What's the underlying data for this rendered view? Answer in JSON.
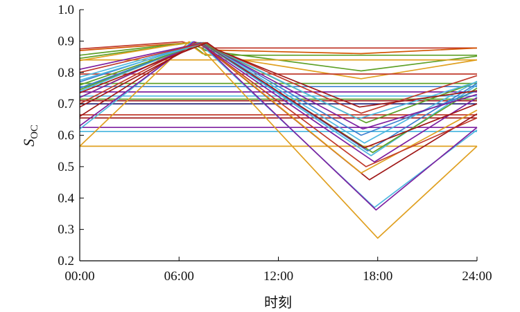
{
  "chart_data": {
    "type": "line",
    "xlabel": "时刻",
    "ylabel_main": "S",
    "ylabel_sub": "OC",
    "xlim": [
      0,
      24
    ],
    "ylim": [
      0.2,
      1.0
    ],
    "x_ticks": [
      {
        "value": 0,
        "label": "00:00"
      },
      {
        "value": 6,
        "label": "06:00"
      },
      {
        "value": 12,
        "label": "12:00"
      },
      {
        "value": 18,
        "label": "18:00"
      },
      {
        "value": 24,
        "label": "24:00"
      }
    ],
    "y_ticks": [
      {
        "value": 0.2,
        "label": "0.2"
      },
      {
        "value": 0.3,
        "label": "0.3"
      },
      {
        "value": 0.4,
        "label": "0.4"
      },
      {
        "value": 0.5,
        "label": "0.5"
      },
      {
        "value": 0.6,
        "label": "0.6"
      },
      {
        "value": 0.7,
        "label": "0.7"
      },
      {
        "value": 0.8,
        "label": "0.8"
      },
      {
        "value": 0.9,
        "label": "0.9"
      },
      {
        "value": 1.0,
        "label": "1.0"
      }
    ],
    "grid": false,
    "series": [
      {
        "color": "#c0392b",
        "x": [
          0,
          6.2,
          7.4,
          24
        ],
        "y": [
          0.875,
          0.898,
          0.878,
          0.878
        ]
      },
      {
        "color": "#d35400",
        "x": [
          0,
          6.8,
          7.5,
          17,
          24
        ],
        "y": [
          0.87,
          0.895,
          0.872,
          0.86,
          0.878
        ]
      },
      {
        "color": "#5da028",
        "x": [
          0,
          6.6,
          7.6,
          24
        ],
        "y": [
          0.855,
          0.895,
          0.855,
          0.855
        ]
      },
      {
        "color": "#5da028",
        "x": [
          0,
          6.7,
          7.6,
          17,
          24
        ],
        "y": [
          0.845,
          0.895,
          0.87,
          0.805,
          0.852
        ]
      },
      {
        "color": "#e0a020",
        "x": [
          0,
          6.5,
          7.4,
          17,
          24
        ],
        "y": [
          0.838,
          0.895,
          0.86,
          0.78,
          0.84
        ]
      },
      {
        "color": "#e0a020",
        "x": [
          0,
          6.2,
          7.3,
          24
        ],
        "y": [
          0.84,
          0.84,
          0.84,
          0.84
        ]
      },
      {
        "color": "#c0392b",
        "x": [
          0,
          24
        ],
        "y": [
          0.795,
          0.795
        ]
      },
      {
        "color": "#5da028",
        "x": [
          0,
          24
        ],
        "y": [
          0.765,
          0.765
        ]
      },
      {
        "color": "#3c7fd0",
        "x": [
          0,
          24
        ],
        "y": [
          0.755,
          0.755
        ]
      },
      {
        "color": "#7d1fa0",
        "x": [
          0,
          24
        ],
        "y": [
          0.738,
          0.738
        ]
      },
      {
        "color": "#4fb8e0",
        "x": [
          0,
          24
        ],
        "y": [
          0.725,
          0.725
        ]
      },
      {
        "color": "#5da028",
        "x": [
          0,
          24
        ],
        "y": [
          0.715,
          0.715
        ]
      },
      {
        "color": "#a01818",
        "x": [
          0,
          24
        ],
        "y": [
          0.71,
          0.71
        ]
      },
      {
        "color": "#2a2a7a",
        "x": [
          0,
          24
        ],
        "y": [
          0.7,
          0.7
        ]
      },
      {
        "color": "#c0392b",
        "x": [
          0,
          24
        ],
        "y": [
          0.665,
          0.665
        ]
      },
      {
        "color": "#a01818",
        "x": [
          0,
          24
        ],
        "y": [
          0.655,
          0.655
        ]
      },
      {
        "color": "#7d1fa0",
        "x": [
          0,
          24
        ],
        "y": [
          0.625,
          0.625
        ]
      },
      {
        "color": "#4fb8e0",
        "x": [
          0,
          24
        ],
        "y": [
          0.612,
          0.612
        ]
      },
      {
        "color": "#e0a020",
        "x": [
          0,
          24
        ],
        "y": [
          0.565,
          0.565
        ]
      },
      {
        "color": "#e0a020",
        "x": [
          0,
          6.6,
          7.2,
          18,
          24
        ],
        "y": [
          0.565,
          0.898,
          0.885,
          0.272,
          0.565
        ]
      },
      {
        "color": "#4fb8e0",
        "x": [
          0,
          6.8,
          7.3,
          17.8,
          24
        ],
        "y": [
          0.62,
          0.898,
          0.89,
          0.37,
          0.617
        ]
      },
      {
        "color": "#7d1fa0",
        "x": [
          0,
          6.9,
          7.4,
          17.9,
          24
        ],
        "y": [
          0.63,
          0.898,
          0.89,
          0.362,
          0.625
        ]
      },
      {
        "color": "#a01818",
        "x": [
          0,
          7.0,
          7.6,
          17.5,
          24
        ],
        "y": [
          0.66,
          0.895,
          0.88,
          0.458,
          0.668
        ]
      },
      {
        "color": "#e0a020",
        "x": [
          0,
          7.1,
          7.7,
          17.0,
          24
        ],
        "y": [
          0.72,
          0.895,
          0.878,
          0.48,
          0.68
        ]
      },
      {
        "color": "#c0392b",
        "x": [
          0,
          7.1,
          7.6,
          17.3,
          24
        ],
        "y": [
          0.7,
          0.895,
          0.88,
          0.5,
          0.655
        ]
      },
      {
        "color": "#7d1fa0",
        "x": [
          0,
          7.2,
          7.7,
          17.8,
          24
        ],
        "y": [
          0.72,
          0.895,
          0.878,
          0.515,
          0.72
        ]
      },
      {
        "color": "#4fb8e0",
        "x": [
          0,
          7.2,
          7.8,
          17.6,
          24
        ],
        "y": [
          0.74,
          0.895,
          0.88,
          0.535,
          0.76
        ]
      },
      {
        "color": "#5da028",
        "x": [
          0,
          7.2,
          7.8,
          17.7,
          24
        ],
        "y": [
          0.745,
          0.895,
          0.88,
          0.545,
          0.75
        ]
      },
      {
        "color": "#3c7fd0",
        "x": [
          0,
          7.3,
          7.9,
          17.4,
          24
        ],
        "y": [
          0.77,
          0.895,
          0.878,
          0.55,
          0.765
        ]
      },
      {
        "color": "#a01818",
        "x": [
          0,
          7.3,
          7.9,
          17.2,
          24
        ],
        "y": [
          0.69,
          0.895,
          0.88,
          0.56,
          0.7
        ]
      },
      {
        "color": "#4fb8e0",
        "x": [
          0,
          7.4,
          8.0,
          17.2,
          24
        ],
        "y": [
          0.785,
          0.895,
          0.878,
          0.575,
          0.772
        ]
      },
      {
        "color": "#3c7fd0",
        "x": [
          0,
          7.4,
          8.0,
          17.0,
          24
        ],
        "y": [
          0.75,
          0.895,
          0.88,
          0.6,
          0.742
        ]
      },
      {
        "color": "#7d1fa0",
        "x": [
          0,
          7.5,
          8.1,
          17.1,
          24
        ],
        "y": [
          0.81,
          0.895,
          0.875,
          0.62,
          0.73
        ]
      },
      {
        "color": "#5da028",
        "x": [
          0,
          7.5,
          8.1,
          17.3,
          24
        ],
        "y": [
          0.76,
          0.895,
          0.875,
          0.64,
          0.77
        ]
      },
      {
        "color": "#4fb8e0",
        "x": [
          0,
          7.6,
          8.2,
          16.8,
          24
        ],
        "y": [
          0.775,
          0.895,
          0.875,
          0.652,
          0.77
        ]
      },
      {
        "color": "#c0392b",
        "x": [
          0,
          7.6,
          8.2,
          17.0,
          24
        ],
        "y": [
          0.8,
          0.895,
          0.875,
          0.67,
          0.79
        ]
      },
      {
        "color": "#a01818",
        "x": [
          0,
          7.7,
          8.3,
          16.9,
          24
        ],
        "y": [
          0.735,
          0.895,
          0.872,
          0.69,
          0.742
        ]
      }
    ]
  }
}
